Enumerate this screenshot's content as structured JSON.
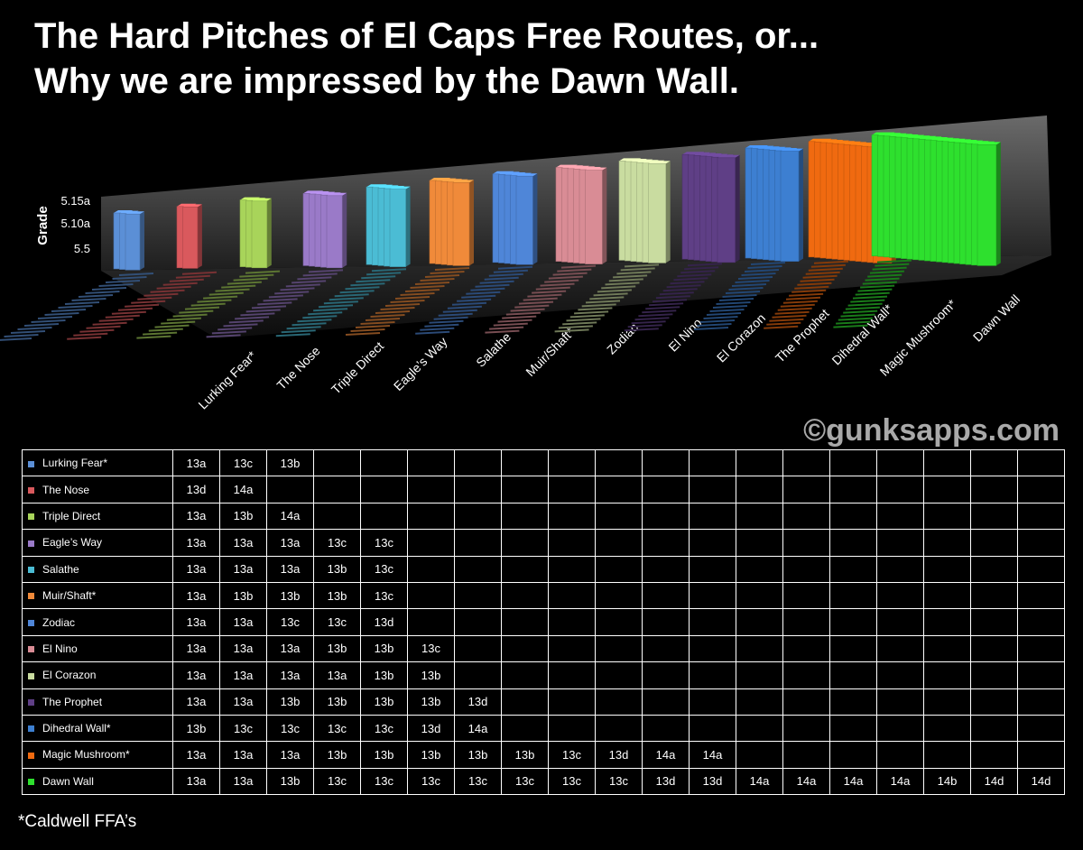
{
  "chart_data": {
    "type": "bar3d",
    "title": [
      "The Hard Pitches of El Caps Free Routes, or...",
      "Why we are impressed by the Dawn Wall."
    ],
    "y_label": "Grade",
    "yticks": [
      "5.15a",
      "5.10a",
      "5.5"
    ],
    "categories": [
      "Lurking Fear*",
      "The Nose",
      "Triple Direct",
      "Eagle’s Way",
      "Salathe",
      "Muir/Shaft*",
      "Zodiac",
      "El Nino",
      "El Corazon",
      "The Prophet",
      "Dihedral Wall*",
      "Magic Mushroom*",
      "Dawn Wall"
    ],
    "colors": [
      "#5b8fd6",
      "#d9595d",
      "#a8d45a",
      "#9a7ac8",
      "#4bbcd4",
      "#f08a3a",
      "#4f86d8",
      "#d98c95",
      "#c9dca0",
      "#5f3f86",
      "#3d7fd1",
      "#f06a10",
      "#2ee02e"
    ],
    "watermark": "©gunksapps.com"
  },
  "table": {
    "rows": [
      {
        "name": "Lurking Fear*",
        "grades": [
          "13a",
          "13c",
          "13b"
        ]
      },
      {
        "name": "The Nose",
        "grades": [
          "13d",
          "14a"
        ]
      },
      {
        "name": "Triple Direct",
        "grades": [
          "13a",
          "13b",
          "14a"
        ]
      },
      {
        "name": "Eagle’s Way",
        "grades": [
          "13a",
          "13a",
          "13a",
          "13c",
          "13c"
        ]
      },
      {
        "name": "Salathe",
        "grades": [
          "13a",
          "13a",
          "13a",
          "13b",
          "13c"
        ]
      },
      {
        "name": "Muir/Shaft*",
        "grades": [
          "13a",
          "13b",
          "13b",
          "13b",
          "13c"
        ]
      },
      {
        "name": "Zodiac",
        "grades": [
          "13a",
          "13a",
          "13c",
          "13c",
          "13d"
        ]
      },
      {
        "name": "El Nino",
        "grades": [
          "13a",
          "13a",
          "13a",
          "13b",
          "13b",
          "13c"
        ]
      },
      {
        "name": "El Corazon",
        "grades": [
          "13a",
          "13a",
          "13a",
          "13a",
          "13b",
          "13b"
        ]
      },
      {
        "name": "The Prophet",
        "grades": [
          "13a",
          "13a",
          "13b",
          "13b",
          "13b",
          "13b",
          "13d"
        ]
      },
      {
        "name": "Dihedral Wall*",
        "grades": [
          "13b",
          "13c",
          "13c",
          "13c",
          "13c",
          "13d",
          "14a"
        ]
      },
      {
        "name": "Magic Mushroom*",
        "grades": [
          "13a",
          "13a",
          "13a",
          "13b",
          "13b",
          "13b",
          "13b",
          "13b",
          "13c",
          "13d",
          "14a",
          "14a"
        ]
      },
      {
        "name": "Dawn Wall",
        "grades": [
          "13a",
          "13a",
          "13b",
          "13c",
          "13c",
          "13c",
          "13c",
          "13c",
          "13c",
          "13c",
          "13d",
          "13d",
          "14a",
          "14a",
          "14a",
          "14a",
          "14b",
          "14d",
          "14d"
        ]
      }
    ]
  },
  "footnote": "*Caldwell FFA’s"
}
